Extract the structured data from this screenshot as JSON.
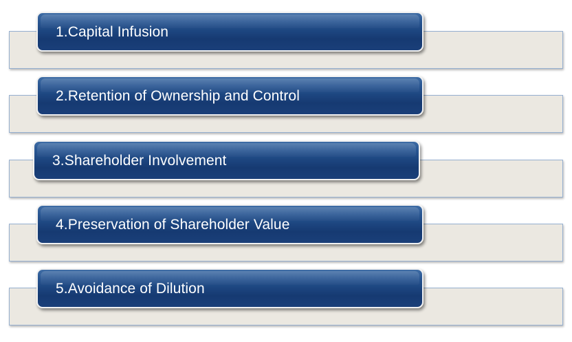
{
  "diagram": {
    "items": [
      {
        "label": "1.Capital Infusion"
      },
      {
        "label": "2.Retention of Ownership and Control"
      },
      {
        "label": "3.Shareholder Involvement"
      },
      {
        "label": "4.Preservation of Shareholder Value"
      },
      {
        "label": "5.Avoidance of Dilution"
      }
    ],
    "colors": {
      "pill": "#1d4680",
      "panel": "#ebe8e1",
      "panel_border": "#95afd0",
      "text": "#ffffff"
    }
  }
}
